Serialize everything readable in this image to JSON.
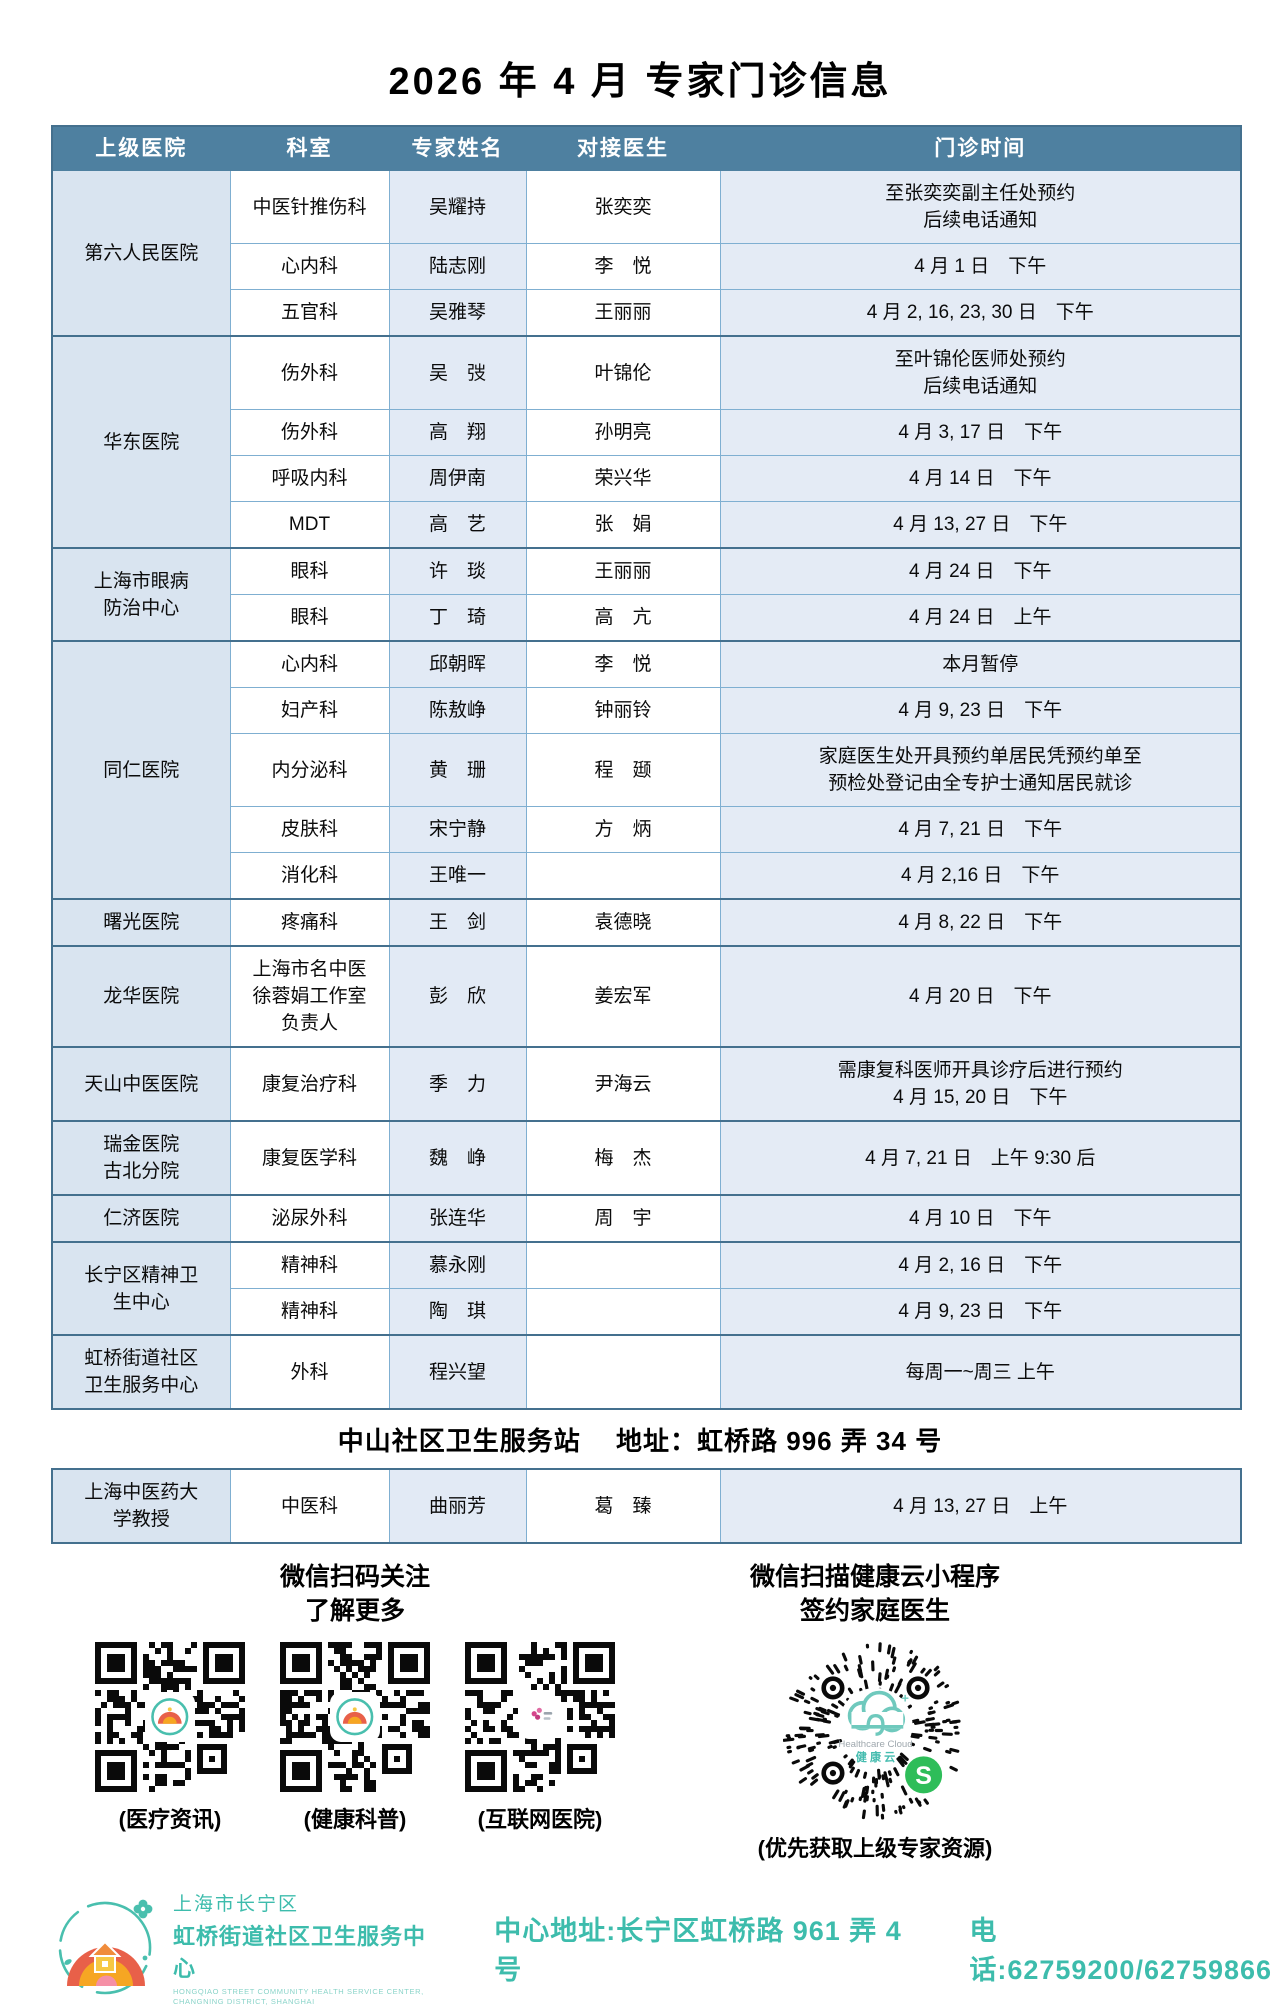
{
  "title": "2026 年 4 月  专家门诊信息",
  "table": {
    "headers": [
      "上级医院",
      "科室",
      "专家姓名",
      "对接医生",
      "门诊时间"
    ],
    "groups": [
      {
        "hospital": "第六人民医院",
        "rows": [
          {
            "dept": "中医针推伤科",
            "expert": "吴耀持",
            "doctor": "张奕奕",
            "time": "至张奕奕副主任处预约\n后续电话通知"
          },
          {
            "dept": "心内科",
            "expert": "陆志刚",
            "doctor": "李　悦",
            "time": "4 月 1 日　下午"
          },
          {
            "dept": "五官科",
            "expert": "吴雅琴",
            "doctor": "王丽丽",
            "time": "4 月 2, 16, 23, 30 日　下午"
          }
        ]
      },
      {
        "hospital": "华东医院",
        "rows": [
          {
            "dept": "伤外科",
            "expert": "吴　弢",
            "doctor": "叶锦伦",
            "time": "至叶锦伦医师处预约\n后续电话通知"
          },
          {
            "dept": "伤外科",
            "expert": "高　翔",
            "doctor": "孙明亮",
            "time": "4 月 3, 17 日　下午"
          },
          {
            "dept": "呼吸内科",
            "expert": "周伊南",
            "doctor": "荣兴华",
            "time": "4 月 14 日　下午"
          },
          {
            "dept": "MDT",
            "expert": "高　艺",
            "doctor": "张　娟",
            "time": "4 月 13, 27 日　下午"
          }
        ]
      },
      {
        "hospital": "上海市眼病\n防治中心",
        "rows": [
          {
            "dept": "眼科",
            "expert": "许　琰",
            "doctor": "王丽丽",
            "time": "4 月 24 日　下午"
          },
          {
            "dept": "眼科",
            "expert": "丁　琦",
            "doctor": "高　亢",
            "time": "4 月 24 日　上午"
          }
        ]
      },
      {
        "hospital": "同仁医院",
        "rows": [
          {
            "dept": "心内科",
            "expert": "邱朝晖",
            "doctor": "李　悦",
            "time": "本月暂停"
          },
          {
            "dept": "妇产科",
            "expert": "陈敖峥",
            "doctor": "钟丽铃",
            "time": "4 月 9, 23 日　下午"
          },
          {
            "dept": "内分泌科",
            "expert": "黄　珊",
            "doctor": "程　颋",
            "time": "家庭医生处开具预约单居民凭预约单至\n预检处登记由全专护士通知居民就诊"
          },
          {
            "dept": "皮肤科",
            "expert": "宋宁静",
            "doctor": "方　炳",
            "time": "4 月 7, 21 日　下午"
          },
          {
            "dept": "消化科",
            "expert": "王唯一",
            "doctor": "",
            "time": "4 月 2,16 日　下午"
          }
        ]
      },
      {
        "hospital": "曙光医院",
        "rows": [
          {
            "dept": "疼痛科",
            "expert": "王　剑",
            "doctor": "袁德晓",
            "time": "4 月 8, 22 日　下午"
          }
        ]
      },
      {
        "hospital": "龙华医院",
        "rows": [
          {
            "dept": "上海市名中医\n徐蓉娟工作室\n负责人",
            "expert": "彭　欣",
            "doctor": "姜宏军",
            "time": "4 月 20 日　下午"
          }
        ]
      },
      {
        "hospital": "天山中医医院",
        "rows": [
          {
            "dept": "康复治疗科",
            "expert": "季　力",
            "doctor": "尹海云",
            "time": "需康复科医师开具诊疗后进行预约\n4 月 15, 20 日　下午"
          }
        ]
      },
      {
        "hospital": "瑞金医院\n古北分院",
        "rows": [
          {
            "dept": "康复医学科",
            "expert": "魏　峥",
            "doctor": "梅　杰",
            "time": "4 月 7, 21 日　上午 9:30 后"
          }
        ]
      },
      {
        "hospital": "仁济医院",
        "rows": [
          {
            "dept": "泌尿外科",
            "expert": "张连华",
            "doctor": "周　宇",
            "time": "4 月 10 日　下午"
          }
        ]
      },
      {
        "hospital": "长宁区精神卫\n生中心",
        "rows": [
          {
            "dept": "精神科",
            "expert": "慕永刚",
            "doctor": "",
            "time": "4 月 2, 16 日　下午"
          },
          {
            "dept": "精神科",
            "expert": "陶　琪",
            "doctor": "",
            "time": "4 月 9, 23 日　下午"
          }
        ]
      },
      {
        "hospital": "虹桥街道社区\n卫生服务中心",
        "rows": [
          {
            "dept": "外科",
            "expert": "程兴望",
            "doctor": "",
            "time": "每周一~周三 上午"
          }
        ]
      }
    ]
  },
  "note": "中山社区卫生服务站　 地址：虹桥路 996 弄 34 号",
  "extra_table": {
    "hospital": "上海中医药大\n学教授",
    "dept": "中医科",
    "expert": "曲丽芳",
    "doctor": "葛　臻",
    "time": "4 月 13, 27 日　上午"
  },
  "qr_section": {
    "left_title_line1": "微信扫码关注",
    "left_title_line2": "了解更多",
    "captions": [
      "(医疗资讯)",
      "(健康科普)",
      "(互联网医院)"
    ],
    "right_title_line1": "微信扫描健康云小程序",
    "right_title_line2": "签约家庭医生",
    "right_caption": "(优先获取上级专家资源)",
    "cloud_text_en": "Healthcare Cloud",
    "cloud_text_cn": "健 康 云"
  },
  "footer": {
    "org_line1": "上海市长宁区",
    "org_line2": "虹桥街道社区卫生服务中心",
    "org_en1": "HONGQIAO STREET COMMUNITY HEALTH SERVICE CENTER,",
    "org_en2": "CHANGNING DISTRICT, SHANGHAI",
    "address": "中心地址:长宁区虹桥路 961 弄 4 号",
    "phone": "电话:62759200/62759866"
  },
  "colors": {
    "header_bg": "#4E80A0",
    "band_cell_bg": "#D9E4F0",
    "grid_line": "#7FAFD1",
    "group_line": "#44708E",
    "footer_teal": "#3DBCAC",
    "qr_green": "#2EBD59",
    "logo_teal": "#49BFAE",
    "logo_orange": "#E86049",
    "logo_yellow": "#F6A623"
  }
}
